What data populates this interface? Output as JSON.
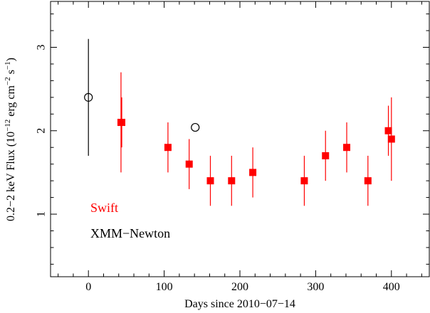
{
  "chart_data": {
    "type": "scatter",
    "title": "",
    "xlabel": "Days since 2010−07−14",
    "ylabel_parts": {
      "a": "0.2−2 keV Flux (10",
      "sup1": "−12",
      "b": " erg cm",
      "sup2": "−2",
      "c": " s",
      "sup3": "−1",
      "d": ")"
    },
    "xlim": [
      -50,
      450
    ],
    "ylim": [
      0.25,
      3.55
    ],
    "x_ticks": [
      0,
      100,
      200,
      300,
      400
    ],
    "x_tick_labels": [
      "0",
      "100",
      "200",
      "300",
      "400"
    ],
    "x_minor_step": 20,
    "y_ticks": [
      1,
      2,
      3
    ],
    "y_tick_labels": [
      "1",
      "2",
      "3"
    ],
    "y_minor_step": 0.2,
    "grid": false,
    "legend_position": "bottom-left",
    "series": [
      {
        "name": "Swift",
        "color": "#ff0000",
        "marker": "filled-square",
        "points": [
          {
            "x": 43,
            "y": 2.1,
            "ylow": 1.5,
            "yhigh": 2.7
          },
          {
            "x": 44,
            "y": 2.1,
            "ylow": 1.8,
            "yhigh": 2.4
          },
          {
            "x": 105,
            "y": 1.8,
            "ylow": 1.5,
            "yhigh": 2.1
          },
          {
            "x": 133,
            "y": 1.6,
            "ylow": 1.3,
            "yhigh": 1.9
          },
          {
            "x": 161,
            "y": 1.4,
            "ylow": 1.1,
            "yhigh": 1.7
          },
          {
            "x": 189,
            "y": 1.4,
            "ylow": 1.1,
            "yhigh": 1.7
          },
          {
            "x": 217,
            "y": 1.5,
            "ylow": 1.2,
            "yhigh": 1.8
          },
          {
            "x": 285,
            "y": 1.4,
            "ylow": 1.1,
            "yhigh": 1.7
          },
          {
            "x": 313,
            "y": 1.7,
            "ylow": 1.4,
            "yhigh": 2.0
          },
          {
            "x": 341,
            "y": 1.8,
            "ylow": 1.5,
            "yhigh": 2.1
          },
          {
            "x": 369,
            "y": 1.4,
            "ylow": 1.1,
            "yhigh": 1.7
          },
          {
            "x": 396,
            "y": 2.0,
            "ylow": 1.7,
            "yhigh": 2.3
          },
          {
            "x": 400,
            "y": 1.9,
            "ylow": 1.4,
            "yhigh": 2.4
          }
        ]
      },
      {
        "name": "XMM−Newton",
        "color": "#000000",
        "marker": "open-circle",
        "points": [
          {
            "x": 0,
            "y": 2.4,
            "ylow": 1.7,
            "yhigh": 3.1
          },
          {
            "x": 141,
            "y": 2.04,
            "ylow": 2.04,
            "yhigh": 2.04
          }
        ]
      }
    ]
  }
}
